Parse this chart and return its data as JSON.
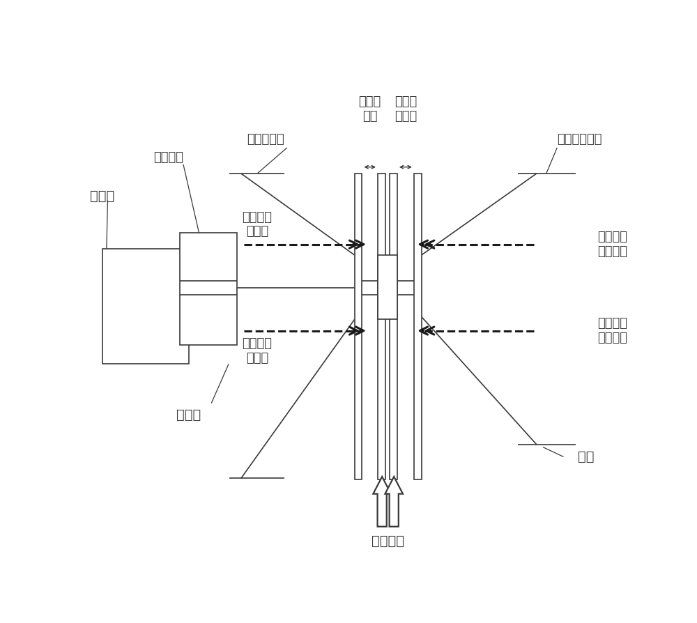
{
  "bg_color": "#ffffff",
  "line_color": "#3a3a3a",
  "dash_color": "#1a1a1a",
  "lw_main": 1.2,
  "lw_dash": 2.2,
  "fs_label": 14,
  "fs_small": 13,
  "figsize": [
    10.0,
    8.94
  ],
  "dpi": 100,
  "xlim": [
    0,
    10
  ],
  "ylim": [
    0,
    8.94
  ],
  "labels": {
    "motor": "电动机",
    "hydraulic": "液压控制",
    "drive_disc_fixed": "传动侧定盘",
    "non_drive_disc_fixed": "非传动侧定盘",
    "drive_gap": "传动侧\n间隙",
    "non_drive_gap": "非传动\n侧间隙",
    "drive_dilution_water": "传动侧稀\n释水量",
    "non_drive_dilution_water": "非传动侧\n稀释水量",
    "drive_feed": "传动侧稀\n给料量",
    "non_drive_feed": "非传动侧\n稀给料量",
    "drive_shaft": "传动轴",
    "moving_disc": "动盘",
    "inlet": "双进料口"
  }
}
